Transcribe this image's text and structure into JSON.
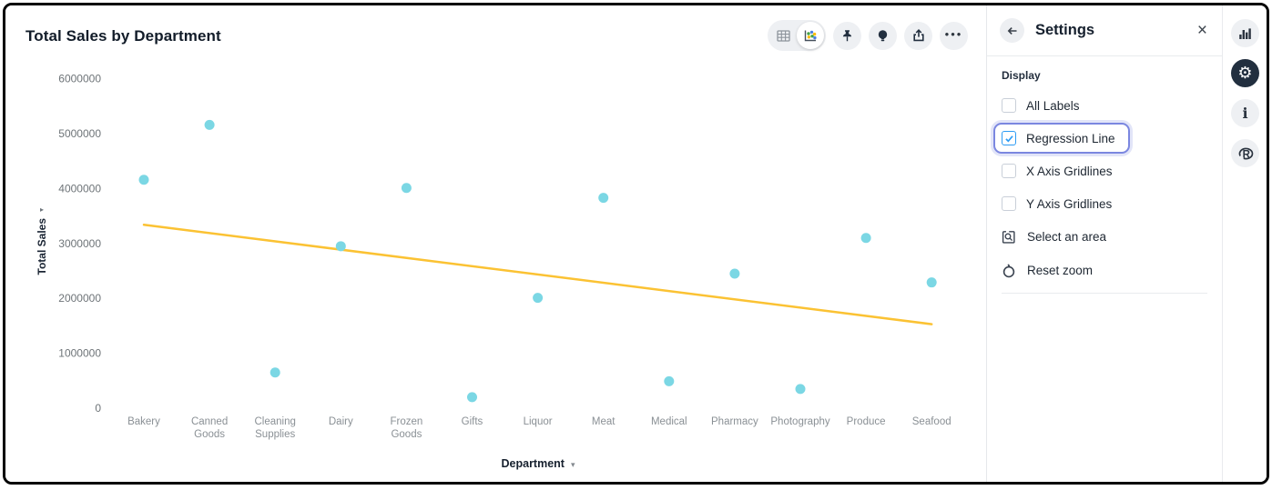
{
  "chart_header": {
    "title": "Total Sales by Department"
  },
  "toolbar": {
    "view_toggle": [
      {
        "name": "table-view",
        "icon": "table-grid-icon",
        "selected": false
      },
      {
        "name": "chart-view",
        "icon": "scatter-chart-icon",
        "selected": true
      }
    ],
    "buttons": [
      {
        "name": "pin",
        "icon": "pin-icon"
      },
      {
        "name": "insights",
        "icon": "lightbulb-icon"
      },
      {
        "name": "export",
        "icon": "export-icon"
      },
      {
        "name": "more",
        "icon": "ellipsis-icon",
        "glyph": "•••"
      }
    ]
  },
  "chart_data": {
    "type": "scatter",
    "title": "Total Sales by Department",
    "xlabel": "Department",
    "ylabel": "Total Sales",
    "categories": [
      "Bakery",
      "Canned Goods",
      "Cleaning Supplies",
      "Dairy",
      "Frozen Goods",
      "Gifts",
      "Liquor",
      "Meat",
      "Medical",
      "Pharmacy",
      "Photography",
      "Produce",
      "Seafood"
    ],
    "values": [
      4160000,
      5160000,
      650000,
      2950000,
      4010000,
      200000,
      2010000,
      3830000,
      490000,
      2450000,
      350000,
      3100000,
      2290000
    ],
    "regression_line": {
      "start_value": 3340000,
      "end_value": 1530000
    },
    "y_ticks": [
      0,
      1000000,
      2000000,
      3000000,
      4000000,
      5000000,
      6000000
    ],
    "ylim": [
      0,
      6000000
    ],
    "grid": false,
    "legend": "none",
    "point_color": "#7bd7e4",
    "regression_color": "#fbc233"
  },
  "settings_panel": {
    "back_glyph": "←",
    "title": "Settings",
    "close_glyph": "×",
    "section_display": "Display",
    "checkboxes": [
      {
        "label": "All Labels",
        "checked": false,
        "focused": false
      },
      {
        "label": "Regression Line",
        "checked": true,
        "focused": true
      },
      {
        "label": "X Axis Gridlines",
        "checked": false,
        "focused": false
      },
      {
        "label": "Y Axis Gridlines",
        "checked": false,
        "focused": false
      }
    ],
    "actions": [
      {
        "label": "Select an area",
        "icon": "select-area-icon"
      },
      {
        "label": "Reset zoom",
        "icon": "reset-zoom-icon"
      }
    ]
  },
  "icon_rail": {
    "items": [
      {
        "name": "chart-options",
        "icon": "bar-chart-icon",
        "active": false
      },
      {
        "name": "settings",
        "icon": "gear-icon",
        "active": true,
        "glyph": "⚙"
      },
      {
        "name": "info",
        "icon": "info-icon",
        "active": false,
        "glyph": "i"
      },
      {
        "name": "r-analytics",
        "icon": "r-logo-icon",
        "active": false
      }
    ]
  },
  "colors": {
    "accent_blue": "#2d9cf4",
    "focus_ring": "#7b87e0",
    "point": "#7bd7e4",
    "regression": "#fbc233",
    "active_circle_bg": "#222f3f",
    "icon_circle_bg": "#eef0f3",
    "text_dark": "#16202e",
    "text_gray": "#8a9095"
  },
  "axis_arrows": {
    "y_arrow": "▸",
    "x_arrow": "▾"
  }
}
